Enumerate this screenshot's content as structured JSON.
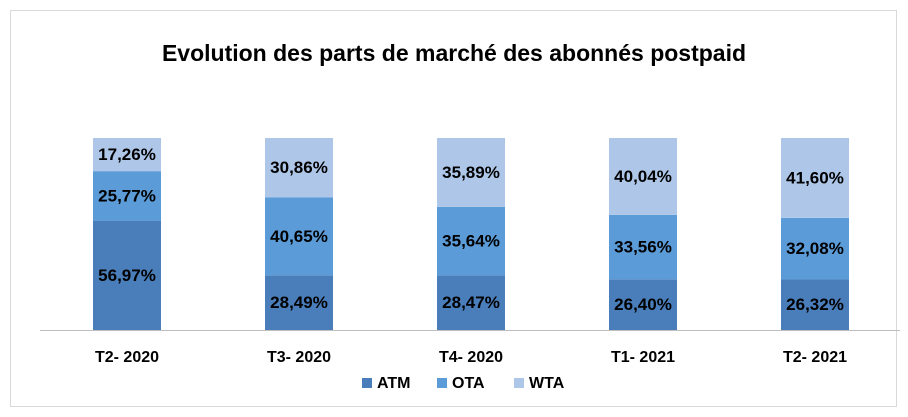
{
  "chart_data": {
    "type": "bar",
    "stacked": true,
    "title": "Evolution des parts de marché des abonnés postpaid",
    "categories": [
      "T2- 2020",
      "T3- 2020",
      "T4- 2020",
      "T1- 2021",
      "T2- 2021"
    ],
    "ylim": [
      0,
      100
    ],
    "series": [
      {
        "name": "ATM",
        "color": "#4a7ebb",
        "values": [
          56.97,
          28.49,
          28.47,
          26.4,
          26.32
        ],
        "value_labels": [
          "56,97%",
          "28,49%",
          "28,47%",
          "26,40%",
          "26,32%"
        ]
      },
      {
        "name": "OTA",
        "color": "#5b9bd8",
        "values": [
          25.77,
          40.65,
          35.64,
          33.56,
          32.08
        ],
        "value_labels": [
          "25,77%",
          "40,65%",
          "35,64%",
          "33,56%",
          "32,08%"
        ]
      },
      {
        "name": "WTA",
        "color": "#aec7e8",
        "values": [
          17.26,
          30.86,
          35.89,
          40.04,
          41.6
        ],
        "value_labels": [
          "17,26%",
          "30,86%",
          "35,89%",
          "40,04%",
          "41,60%"
        ]
      }
    ],
    "legend": "bottom"
  }
}
